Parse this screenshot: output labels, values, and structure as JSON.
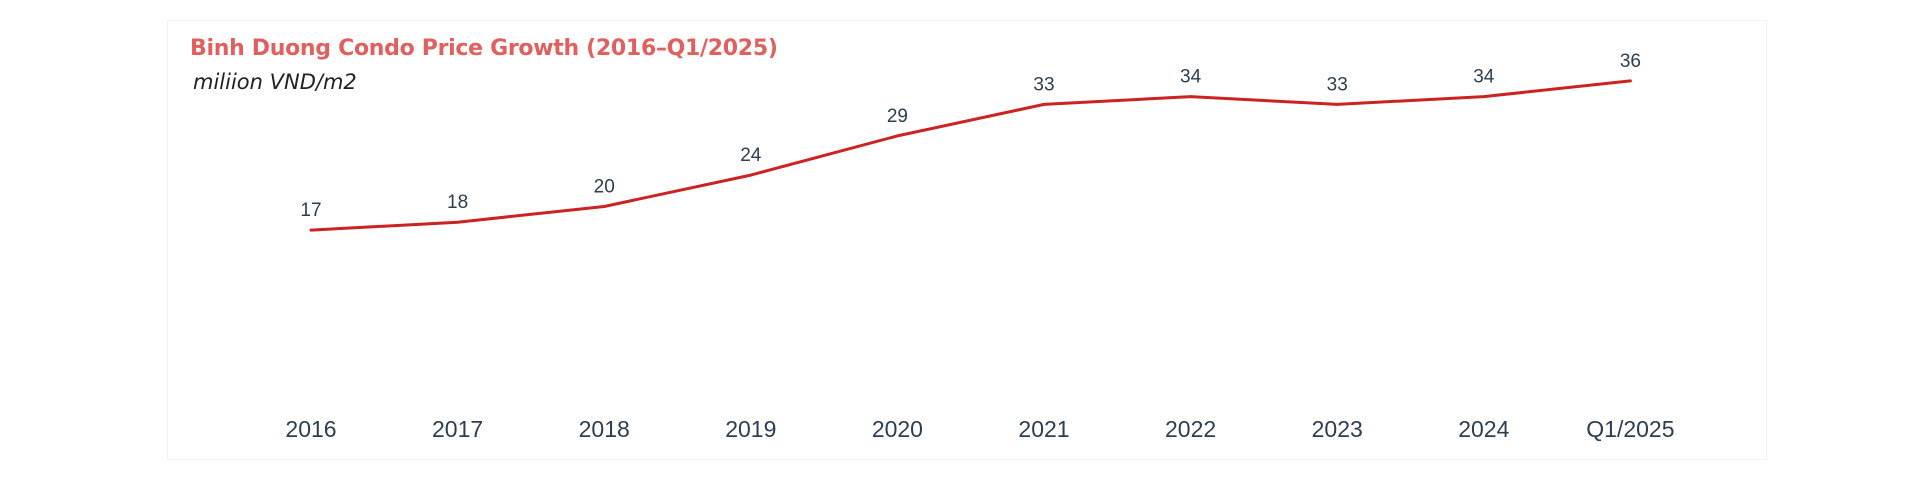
{
  "chart_data": {
    "type": "line",
    "title": "Binh Duong Condo Price Growth (2016–Q1/2025)",
    "subtitle": "miliion VND/m2",
    "categories": [
      "2016",
      "2017",
      "2018",
      "2019",
      "2020",
      "2021",
      "2022",
      "2023",
      "2024",
      "Q1/2025"
    ],
    "series": [
      {
        "values": [
          17,
          18,
          20,
          24,
          29,
          33,
          34,
          33,
          34,
          36
        ],
        "color": "#cc2222"
      }
    ],
    "ylim": [
      0,
      55
    ],
    "grid": false,
    "legend": "none",
    "colors": {
      "title": "#e06060",
      "line": "#cc2222",
      "labels": "#2c3e50"
    }
  }
}
